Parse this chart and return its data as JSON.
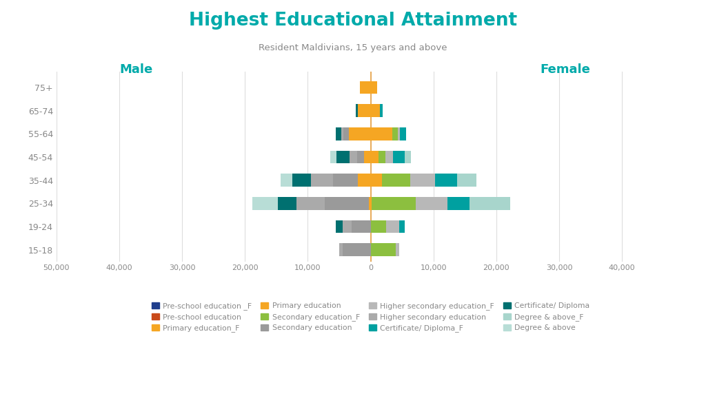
{
  "title": "Highest Educational Attainment",
  "subtitle": "Resident Maldivians, 15 years and above",
  "age_groups": [
    "15-18",
    "19-24",
    "25-34",
    "35-44",
    "45-54",
    "55-64",
    "65-74",
    "75+"
  ],
  "xlim": [
    -50000,
    50000
  ],
  "xticks": [
    -50000,
    -40000,
    -30000,
    -20000,
    -10000,
    0,
    10000,
    20000,
    30000,
    40000
  ],
  "xtick_labels": [
    "50,000",
    "40,000",
    "30,000",
    "20,000",
    "10,000",
    "0",
    "10,000",
    "20,000",
    "30,000",
    "40,000"
  ],
  "colors": {
    "pre_school_F": "#1F3E8C",
    "pre_school_M": "#C94A1A",
    "primary_F": "#F5A623",
    "primary_M": "#F5A623",
    "secondary_F": "#8CBF3F",
    "secondary_M": "#9A9A9A",
    "higher_secondary_F": "#B8B8B8",
    "higher_secondary_M": "#AAAAAA",
    "certificate_F": "#00A0A0",
    "certificate_M": "#007070",
    "degree_F": "#A8D5CC",
    "degree_M": "#B8DDD6"
  },
  "male_data": {
    "pre_school": [
      0,
      0,
      0,
      0,
      0,
      0,
      0,
      0
    ],
    "primary": [
      0,
      0,
      300,
      2000,
      1000,
      3500,
      2000,
      1700
    ],
    "secondary": [
      4500,
      3000,
      7000,
      4000,
      1200,
      800,
      0,
      0
    ],
    "higher_secondary": [
      500,
      1500,
      4500,
      3500,
      1200,
      400,
      0,
      0
    ],
    "certificate": [
      0,
      1000,
      3000,
      3000,
      2000,
      900,
      400,
      0
    ],
    "degree": [
      0,
      0,
      4000,
      1800,
      1000,
      0,
      0,
      0
    ]
  },
  "female_data": {
    "pre_school": [
      0,
      0,
      0,
      0,
      0,
      0,
      0,
      0
    ],
    "primary": [
      0,
      0,
      200,
      1800,
      1200,
      3500,
      1500,
      1000
    ],
    "secondary": [
      4000,
      2500,
      7000,
      4500,
      1200,
      800,
      0,
      0
    ],
    "higher_secondary": [
      500,
      2000,
      5000,
      4000,
      1200,
      400,
      0,
      0
    ],
    "certificate": [
      0,
      900,
      3500,
      3500,
      1800,
      900,
      400,
      0
    ],
    "degree": [
      0,
      0,
      6500,
      3000,
      1000,
      0,
      0,
      0
    ]
  },
  "background_color": "#FFFFFF",
  "title_color": "#00AAAA",
  "subtitle_color": "#888888",
  "label_color": "#00AAAA",
  "tick_color": "#888888"
}
